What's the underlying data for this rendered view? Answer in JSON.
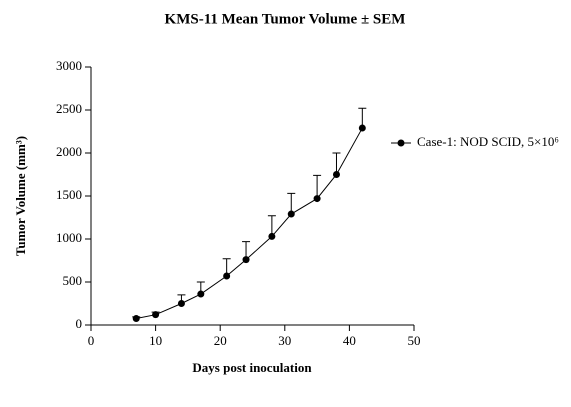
{
  "chart_data": {
    "type": "line",
    "title": "KMS-11 Mean Tumor Volume ± SEM",
    "x_label": "Days post inoculation",
    "y_label": "Tumor Volume (mm³)",
    "x": [
      7,
      10,
      14,
      17,
      21,
      24,
      28,
      31,
      35,
      38,
      42
    ],
    "series": [
      {
        "name": "Case-1: NOD SCID, 5×10⁶",
        "color": "#000000",
        "values": [
          75,
          120,
          250,
          360,
          570,
          760,
          1030,
          1290,
          1470,
          1750,
          2290
        ],
        "errors": [
          20,
          30,
          100,
          140,
          200,
          210,
          240,
          240,
          270,
          250,
          230
        ]
      }
    ],
    "xlim": [
      0,
      50
    ],
    "xticks": [
      0,
      10,
      20,
      30,
      40,
      50
    ],
    "ylim": [
      0,
      3000
    ],
    "yticks": [
      0,
      500,
      1000,
      1500,
      2000,
      2500,
      3000
    ],
    "grid": false,
    "legend": "right"
  }
}
